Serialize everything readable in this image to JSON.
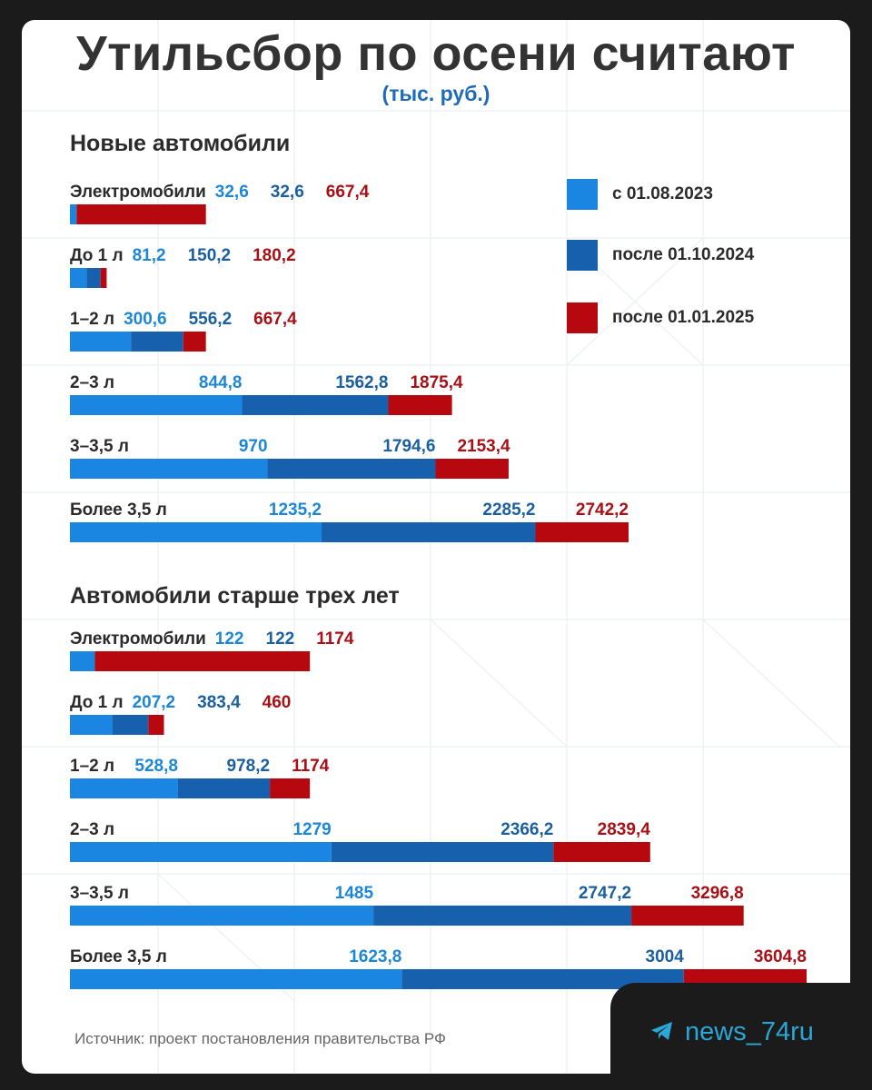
{
  "title": "Утильсбор по осени считают",
  "subtitle": "(тыс. руб.)",
  "legend": [
    {
      "label": "с 01.08.2023",
      "color": "#1a86e2"
    },
    {
      "label": "после 01.10.2024",
      "color": "#1760ad"
    },
    {
      "label": "после 01.01.2025",
      "color": "#b8080f"
    }
  ],
  "source": "Источник: проект постановления правительства РФ",
  "tag": {
    "text": "news_74ru",
    "icon": "telegram-icon"
  },
  "label_colors": [
    "#1d86d6",
    "#1a5f9f",
    "#a81015"
  ],
  "chart_data": [
    {
      "type": "bar",
      "stacked": "cumulative",
      "title": "Новые автомобили",
      "categories": [
        "Электромобили",
        "До 1 л",
        "1–2 л",
        "2–3 л",
        "3–3,5 л",
        "Более 3,5 л"
      ],
      "series": [
        {
          "name": "с 01.08.2023",
          "values": [
            32.6,
            81.2,
            300.6,
            844.8,
            970,
            1235.2
          ],
          "labels": [
            "32,6",
            "81,2",
            "300,6",
            "844,8",
            "970",
            "1235,2"
          ]
        },
        {
          "name": "после 01.10.2024",
          "values": [
            32.6,
            150.2,
            556.2,
            1562.8,
            1794.6,
            2285.2
          ],
          "labels": [
            "32,6",
            "150,2",
            "556,2",
            "1562,8",
            "1794,6",
            "2285,2"
          ]
        },
        {
          "name": "после 01.01.2025",
          "values": [
            667.4,
            180.2,
            667.4,
            1875.4,
            2153.4,
            2742.2
          ],
          "labels": [
            "667,4",
            "180,2",
            "667,4",
            "1875,4",
            "2153,4",
            "2742,2"
          ]
        }
      ]
    },
    {
      "type": "bar",
      "stacked": "cumulative",
      "title": "Автомобили старше трех лет",
      "categories": [
        "Электромобили",
        "До 1 л",
        "1–2 л",
        "2–3 л",
        "3–3,5 л",
        "Более 3,5 л"
      ],
      "series": [
        {
          "name": "с 01.08.2023",
          "values": [
            122,
            207.2,
            528.8,
            1279,
            1485,
            1623.8
          ],
          "labels": [
            "122",
            "207,2",
            "528,8",
            "1279",
            "1485",
            "1623,8"
          ]
        },
        {
          "name": "после 01.10.2024",
          "values": [
            122,
            383.4,
            978.2,
            2366.2,
            2747.2,
            3004
          ],
          "labels": [
            "122",
            "383,4",
            "978,2",
            "2366,2",
            "2747,2",
            "3004"
          ]
        },
        {
          "name": "после 01.01.2025",
          "values": [
            1174,
            460,
            1174,
            2839.4,
            3296.8,
            3604.8
          ],
          "labels": [
            "1174",
            "460",
            "1174",
            "2839,4",
            "3296,8",
            "3604,8"
          ]
        }
      ]
    }
  ]
}
